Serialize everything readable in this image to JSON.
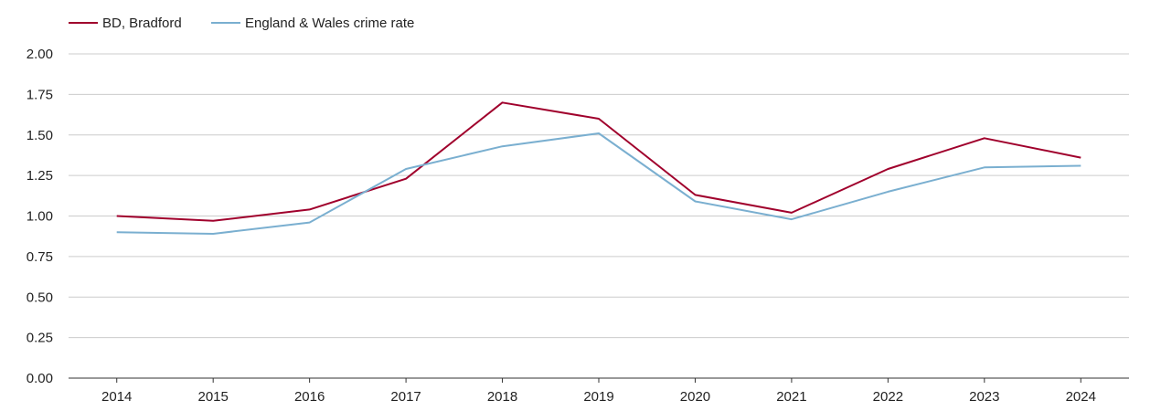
{
  "chart_data": {
    "type": "line",
    "title": "",
    "xlabel": "",
    "ylabel": "",
    "categories": [
      "2014",
      "2015",
      "2016",
      "2017",
      "2018",
      "2019",
      "2020",
      "2021",
      "2022",
      "2023",
      "2024"
    ],
    "ylim": [
      0,
      2
    ],
    "yticks": [
      "0.00",
      "0.25",
      "0.50",
      "0.75",
      "1.00",
      "1.25",
      "1.50",
      "1.75",
      "2.00"
    ],
    "grid": true,
    "legend_position": "top-left",
    "series": [
      {
        "name": "BD, Bradford",
        "color": "#a0002c",
        "values": [
          1.0,
          0.97,
          1.04,
          1.23,
          1.7,
          1.6,
          1.13,
          1.02,
          1.29,
          1.48,
          1.36
        ]
      },
      {
        "name": "England & Wales crime rate",
        "color": "#7aafd0",
        "values": [
          0.9,
          0.89,
          0.96,
          1.29,
          1.43,
          1.51,
          1.09,
          0.98,
          1.15,
          1.3,
          1.31
        ]
      }
    ]
  }
}
